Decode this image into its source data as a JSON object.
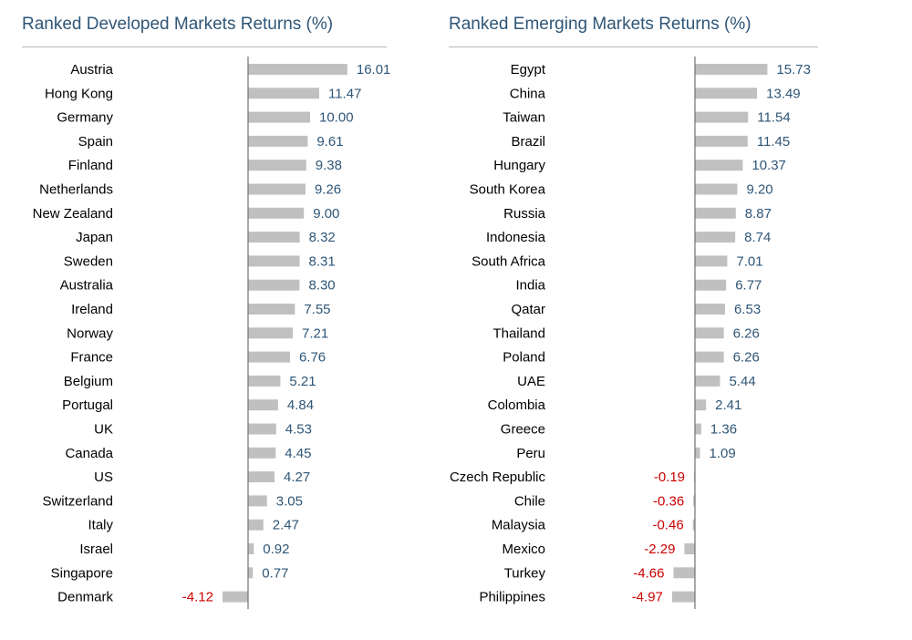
{
  "colors": {
    "title": "#2f5677",
    "bar": "#c0c0c0",
    "axis": "#707070",
    "positive": "#2f5677",
    "negative": "#cc0000"
  },
  "chart_data": [
    {
      "type": "bar",
      "orientation": "horizontal",
      "title": "Ranked Developed Markets Returns (%)",
      "xlabel": "",
      "ylabel": "",
      "categories": [
        "Austria",
        "Hong Kong",
        "Germany",
        "Spain",
        "Finland",
        "Netherlands",
        "New Zealand",
        "Japan",
        "Sweden",
        "Australia",
        "Ireland",
        "Norway",
        "France",
        "Belgium",
        "Portugal",
        "UK",
        "Canada",
        "US",
        "Switzerland",
        "Italy",
        "Israel",
        "Singapore",
        "Denmark"
      ],
      "values": [
        16.01,
        11.47,
        10.0,
        9.61,
        9.38,
        9.26,
        9.0,
        8.32,
        8.31,
        8.3,
        7.55,
        7.21,
        6.76,
        5.21,
        4.84,
        4.53,
        4.45,
        4.27,
        3.05,
        2.47,
        0.92,
        0.77,
        -4.12
      ],
      "grid": false,
      "legend": "none"
    },
    {
      "type": "bar",
      "orientation": "horizontal",
      "title": "Ranked Emerging Markets Returns (%)",
      "xlabel": "",
      "ylabel": "",
      "categories": [
        "Egypt",
        "China",
        "Taiwan",
        "Brazil",
        "Hungary",
        "South Korea",
        "Russia",
        "Indonesia",
        "South Africa",
        "India",
        "Qatar",
        "Thailand",
        "Poland",
        "UAE",
        "Colombia",
        "Greece",
        "Peru",
        "Czech Republic",
        "Chile",
        "Malaysia",
        "Mexico",
        "Turkey",
        "Philippines"
      ],
      "values": [
        15.73,
        13.49,
        11.54,
        11.45,
        10.37,
        9.2,
        8.87,
        8.74,
        7.01,
        6.77,
        6.53,
        6.26,
        6.26,
        5.44,
        2.41,
        1.36,
        1.09,
        -0.19,
        -0.36,
        -0.46,
        -2.29,
        -4.66,
        -4.97
      ],
      "grid": false,
      "legend": "none"
    }
  ]
}
